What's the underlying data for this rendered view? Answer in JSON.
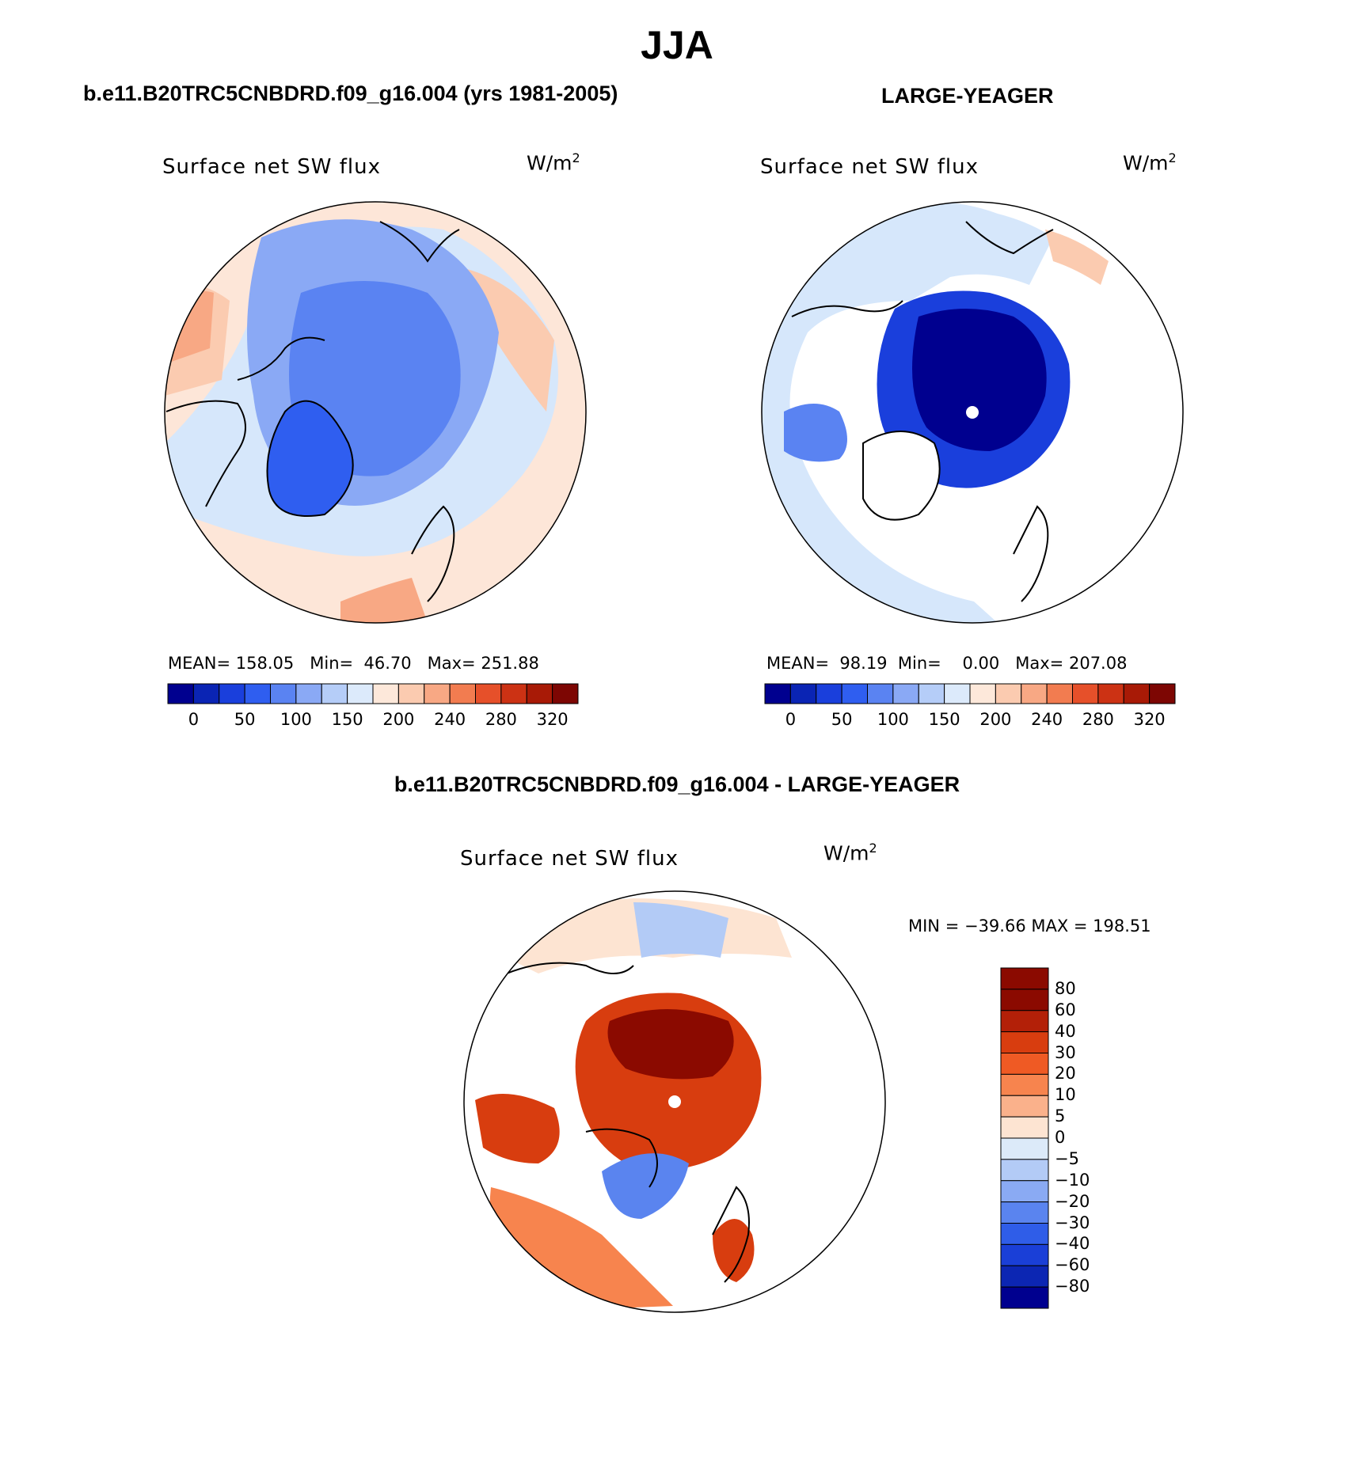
{
  "figure": {
    "title": "JJA",
    "colors": {
      "dark_blue": "#000096",
      "blue": "#1a4ae6",
      "light_blue": "#7ea6f5",
      "pale_blue": "#d6e7fb",
      "pale_orange": "#fde6d8",
      "orange": "#f28a5a",
      "red": "#d7341a",
      "dark_red": "#8a0a02"
    }
  },
  "panels": [
    {
      "id": "model",
      "header": "b.e11.B20TRC5CNBDRD.f09_g16.004 (yrs 1981-2005)",
      "variable": "Surface net SW flux",
      "units_base": "W/m",
      "units_exp": "2",
      "stats": {
        "mean_label": "MEAN=",
        "mean": "158.05",
        "min_label": "Min=",
        "min": "46.70",
        "max_label": "Max=",
        "max": "251.88"
      },
      "colorbar_ticks": [
        "0",
        "50",
        "100",
        "150",
        "200",
        "240",
        "280",
        "320"
      ]
    },
    {
      "id": "obs",
      "header": "LARGE-YEAGER",
      "variable": "Surface net SW flux",
      "units_base": "W/m",
      "units_exp": "2",
      "stats": {
        "mean_label": "MEAN=",
        "mean": "98.19",
        "min_label": "Min=",
        "min": "0.00",
        "max_label": "Max=",
        "max": "207.08"
      },
      "colorbar_ticks": [
        "0",
        "50",
        "100",
        "150",
        "200",
        "240",
        "280",
        "320"
      ]
    },
    {
      "id": "diff",
      "header": "b.e11.B20TRC5CNBDRD.f09_g16.004 - LARGE-YEAGER",
      "variable": "Surface net SW flux",
      "units_base": "W/m",
      "units_exp": "2",
      "stats_line": "MIN = −39.66 MAX = 198.51",
      "colorbar_ticks": [
        "80",
        "60",
        "40",
        "30",
        "20",
        "10",
        "5",
        "0",
        "−5",
        "−10",
        "−20",
        "−30",
        "−40",
        "−60",
        "−80"
      ]
    }
  ],
  "scales": {
    "abs_colors": [
      "#00008f",
      "#0a24b4",
      "#1a3fdc",
      "#2f5ef0",
      "#5a83f2",
      "#8aa9f5",
      "#b5cdf8",
      "#dceafb",
      "#fde8da",
      "#fbcbb0",
      "#f8a884",
      "#f27c50",
      "#e6502a",
      "#cc3214",
      "#a81a06",
      "#7d0603"
    ],
    "diff_colors": [
      "#8b0a00",
      "#b32008",
      "#d83d0f",
      "#ef5a24",
      "#f7844e",
      "#fab18b",
      "#fde4d2",
      "#dceaf9",
      "#b3cbf6",
      "#8aaaf3",
      "#5a84ef",
      "#2f5de8",
      "#1a3fd7",
      "#0c26b3",
      "#00008f"
    ]
  }
}
